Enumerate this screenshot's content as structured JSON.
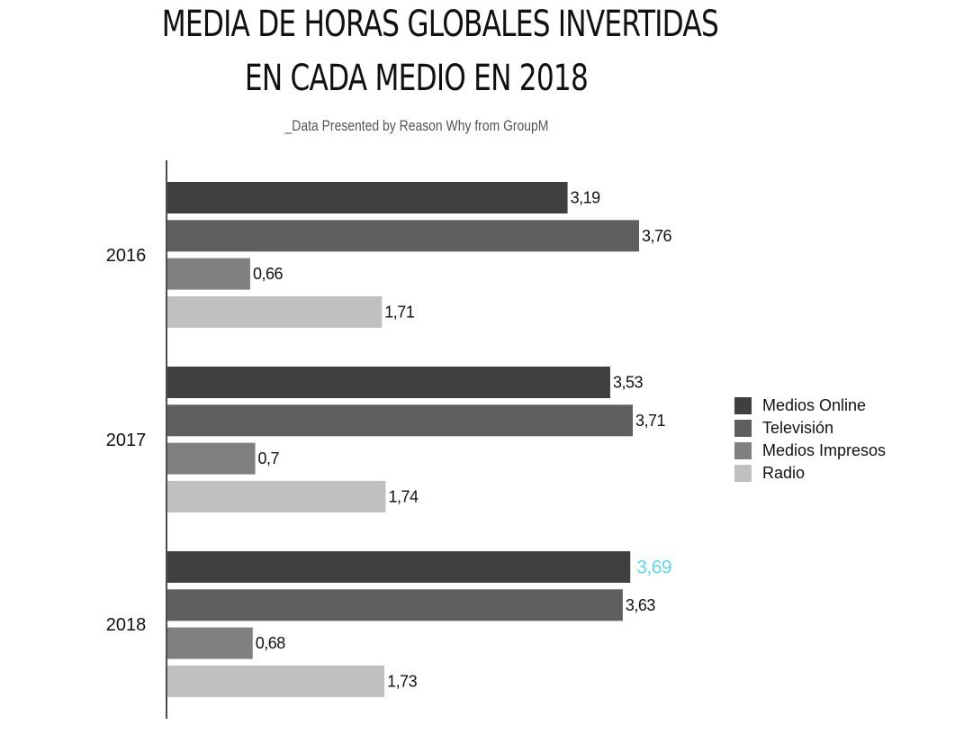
{
  "header": {
    "title_line1": "MEDIA DE HORAS GLOBALES INVERTIDAS",
    "title_line2": "EN CADA MEDIO EN 2018",
    "subtitle": "_Data Presented by Reason Why from GroupM"
  },
  "chart_data": {
    "type": "bar",
    "orientation": "horizontal",
    "title": "MEDIA DE HORAS GLOBALES INVERTIDAS EN CADA MEDIO EN 2018",
    "subtitle": "_Data Presented by Reason Why from GroupM",
    "xlabel": "",
    "ylabel": "",
    "categories": [
      "2016",
      "2017",
      "2018"
    ],
    "series": [
      {
        "name": "Medios Online",
        "color": "#3f3f3f",
        "values": [
          3.19,
          3.53,
          3.69
        ],
        "labels": [
          "3,19",
          "3,53",
          "3,69"
        ]
      },
      {
        "name": "Televisión",
        "color": "#5f5f5f",
        "values": [
          3.76,
          3.71,
          3.63
        ],
        "labels": [
          "3,76",
          "3,71",
          "3,63"
        ]
      },
      {
        "name": "Medios Impresos",
        "color": "#808080",
        "values": [
          0.66,
          0.7,
          0.68
        ],
        "labels": [
          "0,66",
          "0,7",
          "0,68"
        ]
      },
      {
        "name": "Radio",
        "color": "#c0c0c0",
        "values": [
          1.71,
          1.74,
          1.73
        ],
        "labels": [
          "1,71",
          "1,74",
          "1,73"
        ]
      }
    ],
    "highlight": {
      "series": "Medios Online",
      "category": "2018",
      "color": "#5bd6f2"
    },
    "legend_position": "right",
    "grid": false,
    "xlim": [
      0,
      3.76
    ],
    "label_color": "#111111"
  }
}
